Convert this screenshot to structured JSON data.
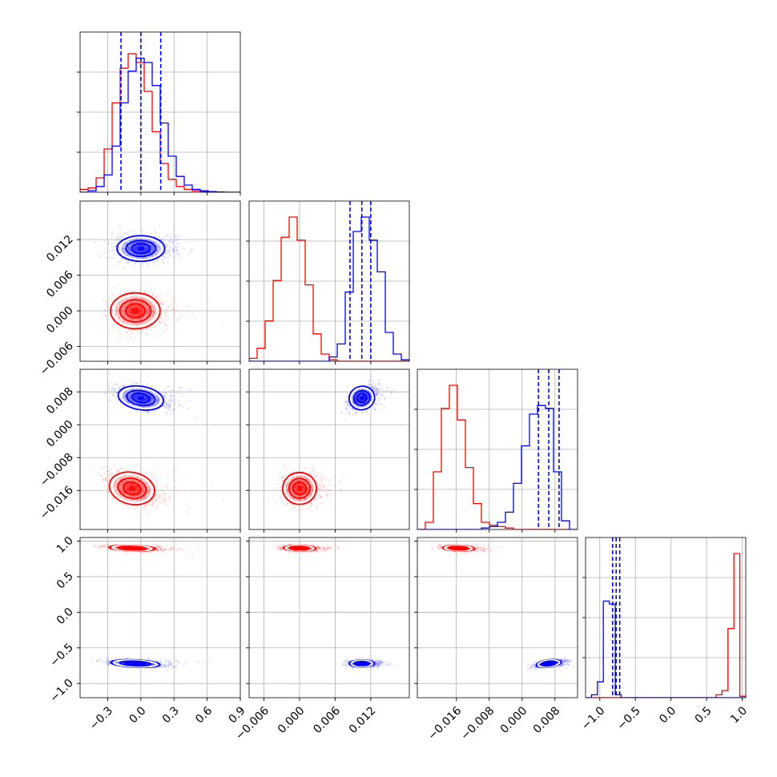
{
  "chart_data": {
    "type": "corner",
    "grid": true,
    "colors": {
      "red": "#ff0000",
      "blue": "#0000ff",
      "grid": "#b0b0b0"
    },
    "parameters": [
      {
        "range": [
          -0.55,
          0.9
        ],
        "ticks": [
          -0.3,
          0.0,
          0.3,
          0.6,
          0.9
        ],
        "tick_labels": [
          "−0.3",
          "0.0",
          "0.3",
          "0.6",
          "0.9"
        ]
      },
      {
        "range": [
          -0.0085,
          0.0185
        ],
        "ticks": [
          -0.006,
          0.0,
          0.006,
          0.012
        ],
        "tick_labels": [
          "−0.006",
          "0.000",
          "0.006",
          "0.012"
        ]
      },
      {
        "range": [
          -0.0255,
          0.0135
        ],
        "ticks": [
          -0.016,
          -0.008,
          0.0,
          0.008
        ],
        "tick_labels": [
          "−0.016",
          "−0.008",
          "0.000",
          "0.008"
        ]
      },
      {
        "range": [
          -1.2,
          1.05
        ],
        "ticks": [
          -1.0,
          -0.5,
          0.0,
          0.5,
          1.0
        ],
        "tick_labels": [
          "−1.0",
          "−0.5",
          "0.0",
          "0.5",
          "1.0"
        ]
      }
    ],
    "marginals": [
      {
        "red": {
          "edges": [
            -0.55,
            0.9
          ],
          "counts": [
            0.02,
            0.03,
            0.1,
            0.3,
            0.62,
            0.86,
            0.96,
            0.9,
            0.7,
            0.42,
            0.2,
            0.09,
            0.04,
            0.02,
            0.01,
            0.005,
            0.002,
            0,
            0,
            0
          ]
        },
        "blue": {
          "edges": [
            -0.55,
            0.9
          ],
          "counts": [
            0,
            0.01,
            0.04,
            0.12,
            0.32,
            0.62,
            0.84,
            0.93,
            0.9,
            0.74,
            0.48,
            0.25,
            0.11,
            0.05,
            0.02,
            0.01,
            0.005,
            0.002,
            0,
            0
          ]
        },
        "blue_quantiles": [
          -0.18,
          0.0,
          0.18
        ]
      },
      {
        "red": {
          "edges": [
            -0.0085,
            0.0185
          ],
          "counts": [
            0.02,
            0.09,
            0.28,
            0.56,
            0.86,
            1.0,
            0.84,
            0.53,
            0.19,
            0.05,
            0.01,
            0,
            0,
            0,
            0,
            0,
            0,
            0,
            0,
            0
          ]
        },
        "blue": {
          "edges": [
            -0.0085,
            0.0185
          ],
          "counts": [
            0,
            0,
            0,
            0,
            0,
            0,
            0,
            0,
            0,
            0,
            0.03,
            0.12,
            0.48,
            0.9,
            1.0,
            0.84,
            0.62,
            0.2,
            0.05,
            0.01
          ]
        },
        "blue_quantiles": [
          0.0085,
          0.0105,
          0.012
        ]
      },
      {
        "red": {
          "edges": [
            -0.0255,
            0.0135
          ],
          "counts": [
            0,
            0.05,
            0.4,
            0.84,
            1.0,
            0.76,
            0.43,
            0.18,
            0.05,
            0.03,
            0.02,
            0.01,
            0,
            0,
            0,
            0,
            0,
            0,
            0,
            0
          ]
        },
        "blue": {
          "edges": [
            -0.0255,
            0.0135
          ],
          "counts": [
            0,
            0,
            0,
            0,
            0,
            0,
            0,
            0,
            0.01,
            0.02,
            0.05,
            0.12,
            0.32,
            0.58,
            0.8,
            0.86,
            0.84,
            0.4,
            0.06,
            0
          ]
        },
        "blue_quantiles": [
          0.004,
          0.0065,
          0.009
        ]
      },
      {
        "red": {
          "edges": [
            -1.2,
            1.05
          ],
          "counts": [
            0,
            0,
            0,
            0,
            0,
            0,
            0,
            0,
            0,
            0,
            0,
            0,
            0,
            0,
            0,
            0,
            0,
            0,
            0,
            0,
            0,
            0,
            0.02,
            0.05,
            0.48,
            1.0,
            0.01
          ]
        },
        "blue": {
          "edges": [
            -1.2,
            1.05
          ],
          "counts": [
            0,
            0.02,
            0.11,
            0.67,
            0.65,
            0.02,
            0,
            0,
            0,
            0,
            0,
            0,
            0,
            0,
            0,
            0,
            0,
            0,
            0,
            0,
            0,
            0,
            0,
            0,
            0,
            0,
            0
          ]
        },
        "blue_quantiles": [
          -0.82,
          -0.77,
          -0.72
        ]
      }
    ],
    "pairs": [
      {
        "x": 0,
        "y": 1,
        "red": {
          "center": [
            -0.05,
            0.0
          ],
          "spread": [
            0.26,
            0.0035
          ],
          "tilt": 0.0
        },
        "blue": {
          "center": [
            0.0,
            0.0105
          ],
          "spread": [
            0.25,
            0.0025
          ],
          "tilt": 0.0
        }
      },
      {
        "x": 0,
        "y": 2,
        "red": {
          "center": [
            -0.08,
            -0.0155
          ],
          "spread": [
            0.24,
            0.0045
          ],
          "tilt": -0.55
        },
        "blue": {
          "center": [
            0.0,
            0.0065
          ],
          "spread": [
            0.24,
            0.0033
          ],
          "tilt": -0.55
        }
      },
      {
        "x": 1,
        "y": 2,
        "red": {
          "center": [
            0.0,
            -0.0155
          ],
          "spread": [
            0.0033,
            0.0045
          ],
          "tilt": 0.0
        },
        "blue": {
          "center": [
            0.0105,
            0.0065
          ],
          "spread": [
            0.0025,
            0.0033
          ],
          "tilt": 0.55
        }
      },
      {
        "x": 0,
        "y": 3,
        "red": {
          "center": [
            -0.08,
            0.9
          ],
          "spread": [
            0.24,
            0.045
          ],
          "tilt": -0.45
        },
        "blue": {
          "center": [
            -0.05,
            -0.72
          ],
          "spread": [
            0.26,
            0.06
          ],
          "tilt": -0.5
        }
      },
      {
        "x": 1,
        "y": 3,
        "red": {
          "center": [
            0.0,
            0.9
          ],
          "spread": [
            0.0032,
            0.045
          ],
          "tilt": -0.2
        },
        "blue": {
          "center": [
            0.0105,
            -0.72
          ],
          "spread": [
            0.0024,
            0.055
          ],
          "tilt": 0.0
        }
      },
      {
        "x": 2,
        "y": 3,
        "red": {
          "center": [
            -0.0155,
            0.9
          ],
          "spread": [
            0.0045,
            0.045
          ],
          "tilt": -0.3
        },
        "blue": {
          "center": [
            0.0065,
            -0.72
          ],
          "spread": [
            0.0035,
            0.06
          ],
          "tilt": 0.65
        }
      }
    ]
  }
}
